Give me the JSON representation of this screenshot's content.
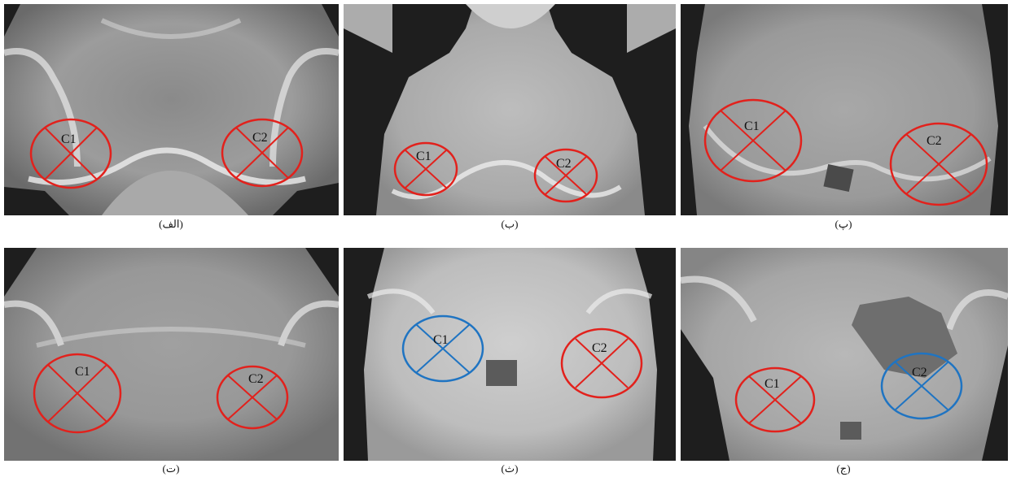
{
  "colors": {
    "red_marker": "#e2211c",
    "blue_marker": "#1f74c2",
    "background": "#ffffff"
  },
  "panels": [
    {
      "caption": "(الف)",
      "markers": [
        {
          "label": "C1",
          "color": "red"
        },
        {
          "label": "C2",
          "color": "red"
        }
      ]
    },
    {
      "caption": "(ب)",
      "markers": [
        {
          "label": "C1",
          "color": "red"
        },
        {
          "label": "C2",
          "color": "red"
        }
      ]
    },
    {
      "caption": "(پ)",
      "markers": [
        {
          "label": "C1",
          "color": "red"
        },
        {
          "label": "C2",
          "color": "red"
        }
      ]
    },
    {
      "caption": "(ت)",
      "markers": [
        {
          "label": "C1",
          "color": "red"
        },
        {
          "label": "C2",
          "color": "red"
        }
      ]
    },
    {
      "caption": "(ث)",
      "markers": [
        {
          "label": "C1",
          "color": "blue"
        },
        {
          "label": "C2",
          "color": "red"
        }
      ]
    },
    {
      "caption": "(ج)",
      "markers": [
        {
          "label": "C1",
          "color": "red"
        },
        {
          "label": "C2",
          "color": "blue"
        }
      ]
    }
  ]
}
